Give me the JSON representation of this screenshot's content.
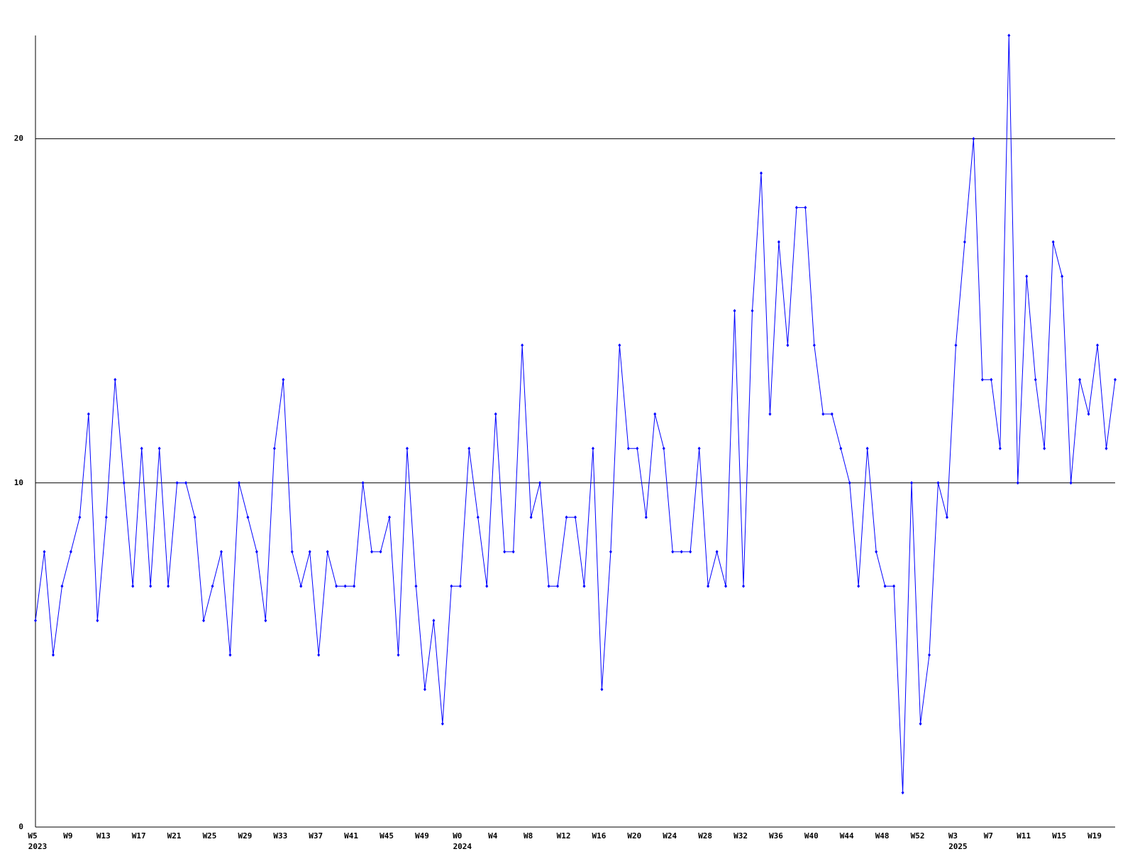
{
  "chart_data": {
    "type": "line",
    "categories": [
      "W5",
      null,
      null,
      null,
      "W9",
      null,
      null,
      null,
      "W13",
      null,
      null,
      null,
      "W17",
      null,
      null,
      null,
      "W21",
      null,
      null,
      null,
      "W25",
      null,
      null,
      null,
      "W29",
      null,
      null,
      null,
      "W33",
      null,
      null,
      null,
      "W37",
      null,
      null,
      null,
      "W41",
      null,
      null,
      null,
      "W45",
      null,
      null,
      null,
      "W49",
      null,
      null,
      null,
      "W0",
      null,
      null,
      null,
      "W4",
      null,
      null,
      null,
      "W8",
      null,
      null,
      null,
      "W12",
      null,
      null,
      null,
      "W16",
      null,
      null,
      null,
      "W20",
      null,
      null,
      null,
      "W24",
      null,
      null,
      null,
      "W28",
      null,
      null,
      null,
      "W32",
      null,
      null,
      null,
      "W36",
      null,
      null,
      null,
      "W40",
      null,
      null,
      null,
      "W44",
      null,
      null,
      null,
      "W48",
      null,
      null,
      null,
      "W52",
      null,
      null,
      null,
      "W3",
      null,
      null,
      null,
      "W7",
      null,
      null,
      null,
      "W11",
      null,
      null,
      null,
      "W15",
      null,
      null,
      null,
      "W19",
      null,
      null
    ],
    "category_years": [
      "2023",
      null,
      null,
      null,
      null,
      null,
      null,
      null,
      null,
      null,
      null,
      null,
      null,
      null,
      null,
      null,
      null,
      null,
      null,
      null,
      null,
      null,
      null,
      null,
      null,
      null,
      null,
      null,
      null,
      null,
      null,
      null,
      null,
      null,
      null,
      null,
      null,
      null,
      null,
      null,
      null,
      null,
      null,
      null,
      null,
      null,
      null,
      null,
      "2024",
      null,
      null,
      null,
      null,
      null,
      null,
      null,
      null,
      null,
      null,
      null,
      null,
      null,
      null,
      null,
      null,
      null,
      null,
      null,
      null,
      null,
      null,
      null,
      null,
      null,
      null,
      null,
      null,
      null,
      null,
      null,
      null,
      null,
      null,
      null,
      null,
      null,
      null,
      null,
      null,
      null,
      null,
      null,
      null,
      null,
      null,
      null,
      null,
      null,
      null,
      null,
      null,
      null,
      null,
      null,
      "2025",
      null,
      null,
      null,
      null,
      null,
      null,
      null,
      null,
      null,
      null,
      null,
      null,
      null,
      null,
      null,
      null,
      null,
      null
    ],
    "series": [
      {
        "color": "#0000ff",
        "values": [
          6,
          8,
          5,
          7,
          8,
          9,
          12,
          6,
          9,
          13,
          10,
          7,
          11,
          7,
          11,
          7,
          10,
          10,
          9,
          6,
          7,
          8,
          5,
          10,
          9,
          8,
          6,
          11,
          13,
          8,
          7,
          8,
          5,
          8,
          7,
          7,
          7,
          10,
          8,
          8,
          9,
          5,
          11,
          7,
          4,
          6,
          3,
          7,
          7,
          11,
          9,
          7,
          12,
          8,
          8,
          14,
          9,
          10,
          7,
          7,
          9,
          9,
          7,
          11,
          4,
          8,
          14,
          11,
          11,
          9,
          12,
          11,
          8,
          8,
          8,
          11,
          7,
          8,
          7,
          15,
          7,
          15,
          19,
          12,
          17,
          14,
          18,
          18,
          14,
          12,
          12,
          11,
          10,
          7,
          11,
          8,
          7,
          7,
          1,
          10,
          3,
          5,
          10,
          9,
          14,
          17,
          20,
          13,
          13,
          11,
          23,
          10,
          16,
          13,
          11,
          17,
          16,
          10,
          13,
          12,
          14,
          11,
          13
        ]
      }
    ],
    "ylim": [
      0,
      23
    ],
    "yticks": [
      0,
      10,
      20
    ],
    "grid": true
  }
}
